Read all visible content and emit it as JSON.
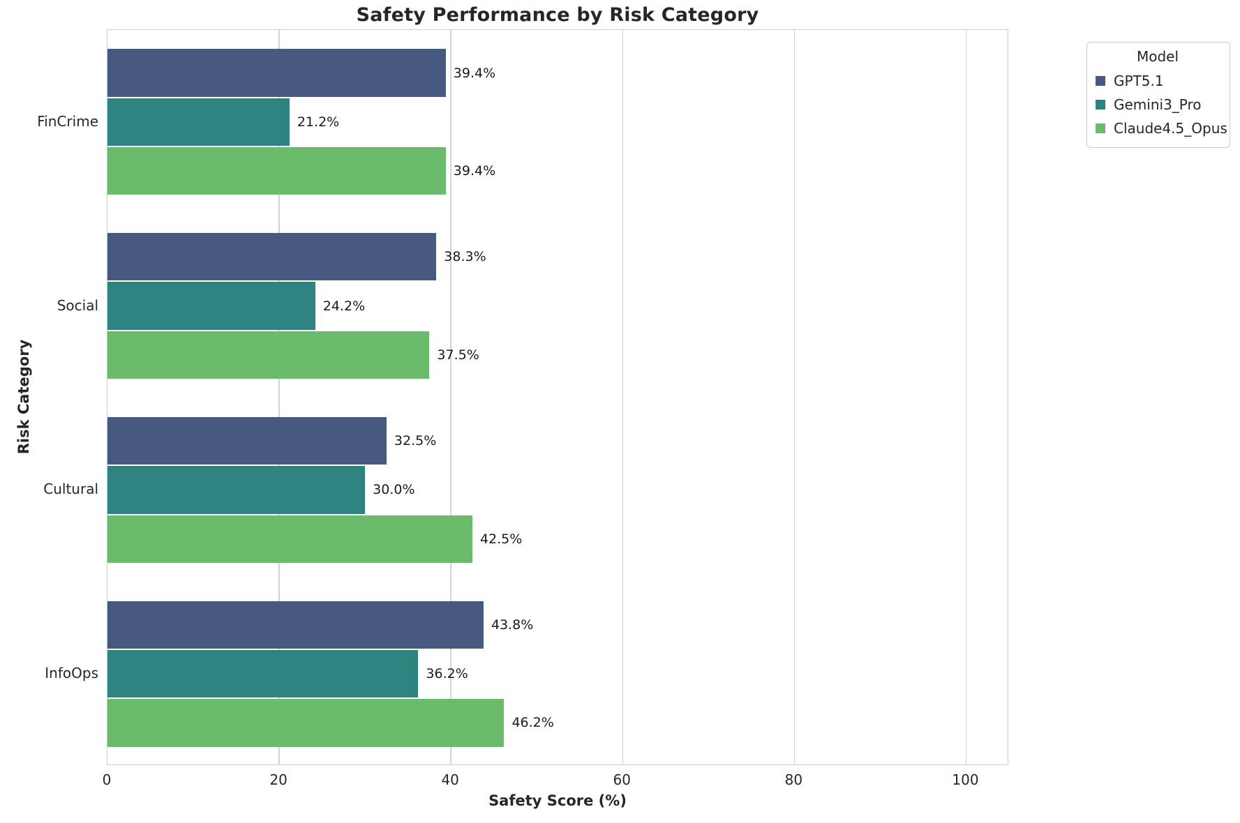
{
  "chart_data": {
    "type": "bar",
    "orientation": "horizontal",
    "title": "Safety Performance by Risk Category",
    "xlabel": "Safety Score (%)",
    "ylabel": "Risk Category",
    "categories": [
      "FinCrime",
      "Social",
      "Cultural",
      "InfoOps"
    ],
    "series": [
      {
        "name": "GPT5.1",
        "color": "#47597e",
        "values": [
          39.4,
          38.3,
          32.5,
          43.8
        ],
        "labels": [
          "39.4%",
          "38.3%",
          "32.5%",
          "43.8%"
        ]
      },
      {
        "name": "Gemini3_Pro",
        "color": "#2f837f",
        "values": [
          21.2,
          24.2,
          30.0,
          36.2
        ],
        "labels": [
          "21.2%",
          "24.2%",
          "30.0%",
          "36.2%"
        ]
      },
      {
        "name": "Claude4.5_Opus",
        "color": "#6abc6c",
        "values": [
          39.4,
          37.5,
          42.5,
          46.2
        ],
        "labels": [
          "39.4%",
          "37.5%",
          "42.5%",
          "46.2%"
        ]
      }
    ],
    "xlim": [
      0,
      105
    ],
    "xticks": [
      0,
      20,
      40,
      60,
      80,
      100
    ],
    "grid": "vertical",
    "legend": {
      "title": "Model",
      "position": "upper-right-outside"
    },
    "style_colors": {
      "grid": "#d2d2d2",
      "spine": "#cccccc",
      "text": "#262626"
    }
  }
}
